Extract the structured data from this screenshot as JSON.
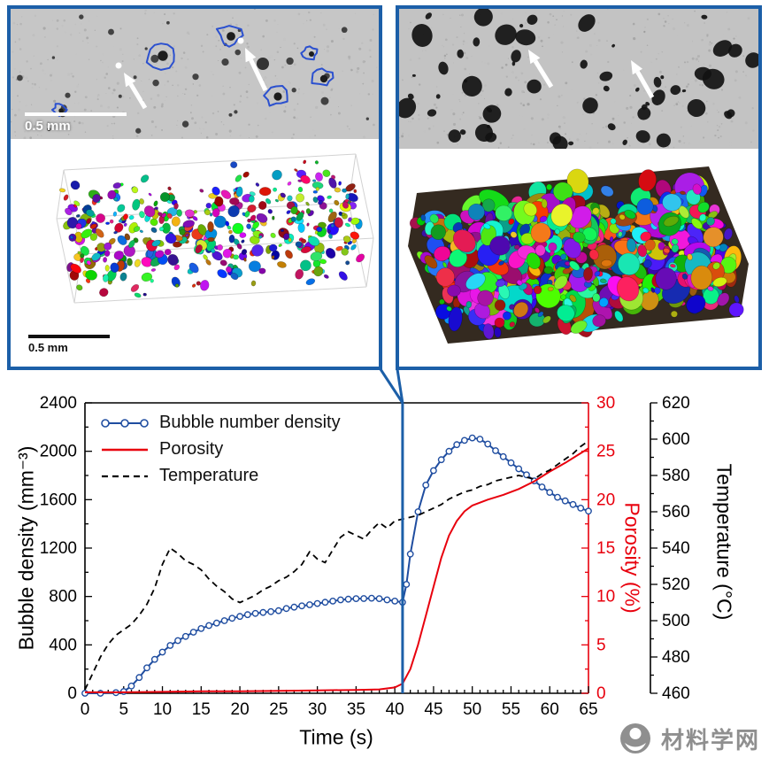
{
  "colors": {
    "accent_blue": "#1c5fa8",
    "bubble_blue": "#1f4da0",
    "porosity_red": "#e8000d",
    "temperature_black": "#000000"
  },
  "panels": {
    "left": {
      "micrograph_scale": "0.5 mm",
      "render_scale": "0.5 mm"
    },
    "right": {}
  },
  "chart_data": {
    "type": "line",
    "title": "",
    "xlabel": "Time (s)",
    "x_range": [
      0,
      65
    ],
    "x_ticks": [
      0,
      5,
      10,
      15,
      20,
      25,
      30,
      35,
      40,
      45,
      50,
      55,
      60,
      65
    ],
    "event_line_x": 41,
    "legend_position": "top-left",
    "grid": false,
    "axes": {
      "left": {
        "label": "Bubble density (mm⁻³)",
        "range": [
          0,
          2400
        ],
        "ticks": [
          0,
          400,
          800,
          1200,
          1600,
          2000,
          2400
        ],
        "color": "#000000"
      },
      "right": {
        "label": "Porosity (%)",
        "range": [
          0,
          30
        ],
        "ticks": [
          0,
          5,
          10,
          15,
          20,
          25,
          30
        ],
        "color": "#e8000d"
      },
      "far_right": {
        "label": "Temperature (°C)",
        "range": [
          460,
          620
        ],
        "ticks": [
          460,
          480,
          500,
          520,
          540,
          560,
          580,
          600,
          620
        ],
        "color": "#000000"
      }
    },
    "series": [
      {
        "name": "Bubble number density",
        "axis": "left",
        "color": "#1f4da0",
        "marker": "circle-open",
        "dash": false,
        "x": [
          0,
          2,
          4,
          5,
          6,
          7,
          8,
          9,
          10,
          11,
          12,
          13,
          14,
          15,
          16,
          17,
          18,
          19,
          20,
          21,
          22,
          23,
          24,
          25,
          26,
          27,
          28,
          29,
          30,
          31,
          32,
          33,
          34,
          35,
          36,
          37,
          38,
          39,
          40,
          41,
          41.5,
          42,
          43,
          44,
          45,
          46,
          47,
          48,
          49,
          50,
          51,
          52,
          53,
          54,
          55,
          56,
          57,
          58,
          59,
          60,
          61,
          62,
          63,
          64,
          65
        ],
        "y": [
          0,
          0,
          5,
          15,
          60,
          130,
          210,
          280,
          340,
          395,
          435,
          470,
          505,
          535,
          560,
          580,
          600,
          620,
          635,
          650,
          660,
          668,
          675,
          683,
          700,
          712,
          722,
          732,
          742,
          752,
          762,
          772,
          778,
          782,
          783,
          786,
          782,
          772,
          762,
          752,
          900,
          1150,
          1500,
          1720,
          1840,
          1930,
          2000,
          2055,
          2090,
          2110,
          2100,
          2060,
          2005,
          1955,
          1905,
          1855,
          1805,
          1755,
          1705,
          1660,
          1620,
          1590,
          1560,
          1530,
          1505
        ]
      },
      {
        "name": "Porosity",
        "axis": "right",
        "color": "#e8000d",
        "marker": "none",
        "dash": false,
        "x": [
          0,
          5,
          10,
          15,
          20,
          25,
          30,
          35,
          38,
          40,
          41,
          42,
          43,
          44,
          45,
          46,
          47,
          48,
          49,
          50,
          52,
          54,
          56,
          58,
          60,
          62,
          64,
          65
        ],
        "y": [
          0.1,
          0.1,
          0.15,
          0.2,
          0.2,
          0.25,
          0.3,
          0.35,
          0.4,
          0.6,
          1.0,
          2.5,
          5.0,
          8.0,
          11.0,
          14.0,
          16.3,
          17.8,
          18.8,
          19.4,
          20.0,
          20.5,
          21.1,
          21.9,
          22.9,
          23.8,
          24.8,
          25.3
        ]
      },
      {
        "name": "Temperature",
        "axis": "far_right",
        "color": "#000000",
        "marker": "none",
        "dash": true,
        "x": [
          0,
          1,
          2,
          3,
          4,
          5,
          6,
          7,
          8,
          9,
          10,
          11,
          12,
          13,
          14,
          15,
          16,
          17,
          18,
          19,
          20,
          21,
          22,
          23,
          24,
          25,
          26,
          27,
          28,
          29,
          30,
          31,
          32,
          33,
          34,
          35,
          36,
          37,
          38,
          39,
          40,
          41,
          42,
          43,
          44,
          45,
          46,
          47,
          48,
          49,
          50,
          51,
          52,
          53,
          54,
          55,
          56,
          57,
          58,
          59,
          60,
          61,
          62,
          63,
          64,
          65
        ],
        "y": [
          462,
          471,
          480,
          487,
          492,
          495,
          498,
          503,
          509,
          518,
          531,
          540,
          537,
          533,
          531,
          528,
          523,
          519,
          516,
          512,
          510,
          512,
          514,
          517,
          519,
          522,
          524,
          527,
          531,
          538,
          534,
          532,
          539,
          546,
          549,
          547,
          545,
          550,
          554,
          551,
          555,
          556,
          557,
          558,
          560,
          562,
          564,
          567,
          569,
          571,
          572,
          574,
          575,
          577,
          578,
          579,
          580,
          579,
          578,
          581,
          583,
          586,
          589,
          592,
          596,
          599
        ]
      }
    ]
  },
  "watermark": {
    "text": "材料学网",
    "icon": "hand-globe-icon"
  }
}
